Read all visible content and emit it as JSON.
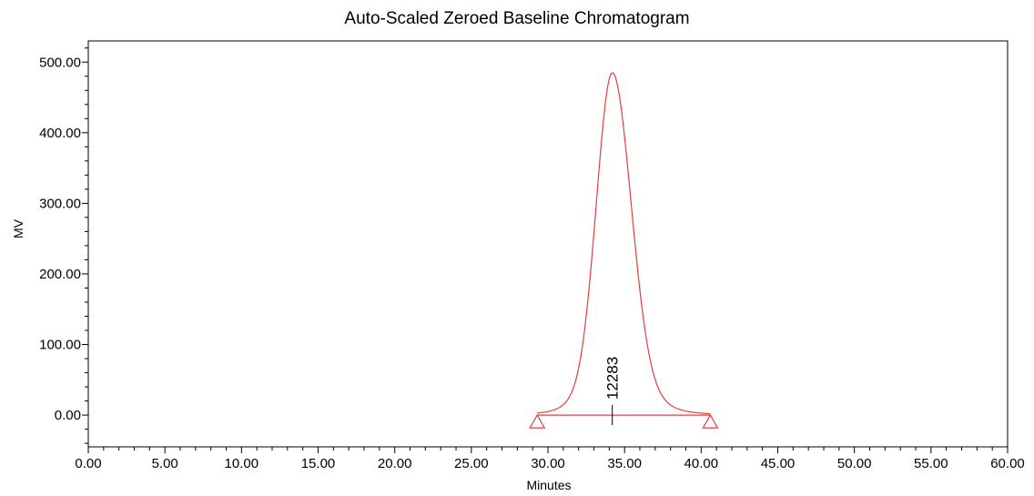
{
  "chart_data": {
    "type": "line",
    "title": "Auto-Scaled Zeroed Baseline Chromatogram",
    "xlabel": "Minutes",
    "ylabel": "MV",
    "xlim": [
      0,
      60
    ],
    "ylim": [
      -45,
      530
    ],
    "x_ticks": [
      "0.00",
      "5.00",
      "10.00",
      "15.00",
      "20.00",
      "25.00",
      "30.00",
      "35.00",
      "40.00",
      "45.00",
      "50.00",
      "55.00",
      "60.00"
    ],
    "y_ticks": [
      "0.00",
      "100.00",
      "200.00",
      "300.00",
      "400.00",
      "500.00"
    ],
    "grid": false,
    "series": [
      {
        "color": "#e83c3c",
        "peak": {
          "start_time": 29.3,
          "apex_time": 34.2,
          "end_time": 40.6,
          "apex_height": 485,
          "baseline": 0
        }
      }
    ],
    "annotations": [
      {
        "text": "12283",
        "x": 34.2,
        "orientation": "vertical"
      }
    ],
    "baseline_markers": [
      {
        "x": 29.3,
        "shape": "triangle"
      },
      {
        "x": 40.6,
        "shape": "triangle"
      }
    ]
  }
}
